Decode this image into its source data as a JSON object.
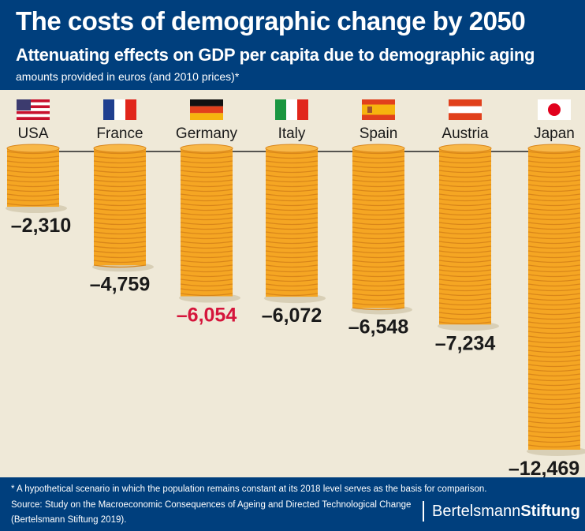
{
  "header": {
    "title": "The costs of demographic change by 2050",
    "subtitle": "Attenuating effects on GDP per capita due to demographic aging",
    "note": "amounts provided in euros (and 2010 prices)*"
  },
  "chart_data": {
    "type": "bar",
    "title": "The costs of demographic change by 2050",
    "categories": [
      "USA",
      "France",
      "Germany",
      "Italy",
      "Spain",
      "Austria",
      "Japan"
    ],
    "values": [
      -2310,
      -4759,
      -6054,
      -6072,
      -6548,
      -7234,
      -12469
    ],
    "labels": [
      "–2,310",
      "–4,759",
      "–6,054",
      "–6,072",
      "–6,548",
      "–7,234",
      "–12,469"
    ],
    "highlight": "Germany",
    "colors": {
      "coin": "#f5a623",
      "coin_dark": "#d9861a",
      "label": "#1a1a1a",
      "highlight_label": "#d5153b"
    },
    "flags": [
      "us-flag",
      "france-flag",
      "germany-flag",
      "italy-flag",
      "spain-flag",
      "austria-flag",
      "japan-flag"
    ]
  },
  "footer": {
    "footnote": "* A hypothetical scenario in which the population remains constant at its 2018 level serves as the basis for comparison.",
    "source_line1": "Source: Study on the Macroeconomic Consequences of Ageing and Directed Technological Change",
    "source_line2": "(Bertelsmann Stiftung 2019).",
    "logo_light": "Bertelsmann",
    "logo_bold": "Stiftung"
  }
}
